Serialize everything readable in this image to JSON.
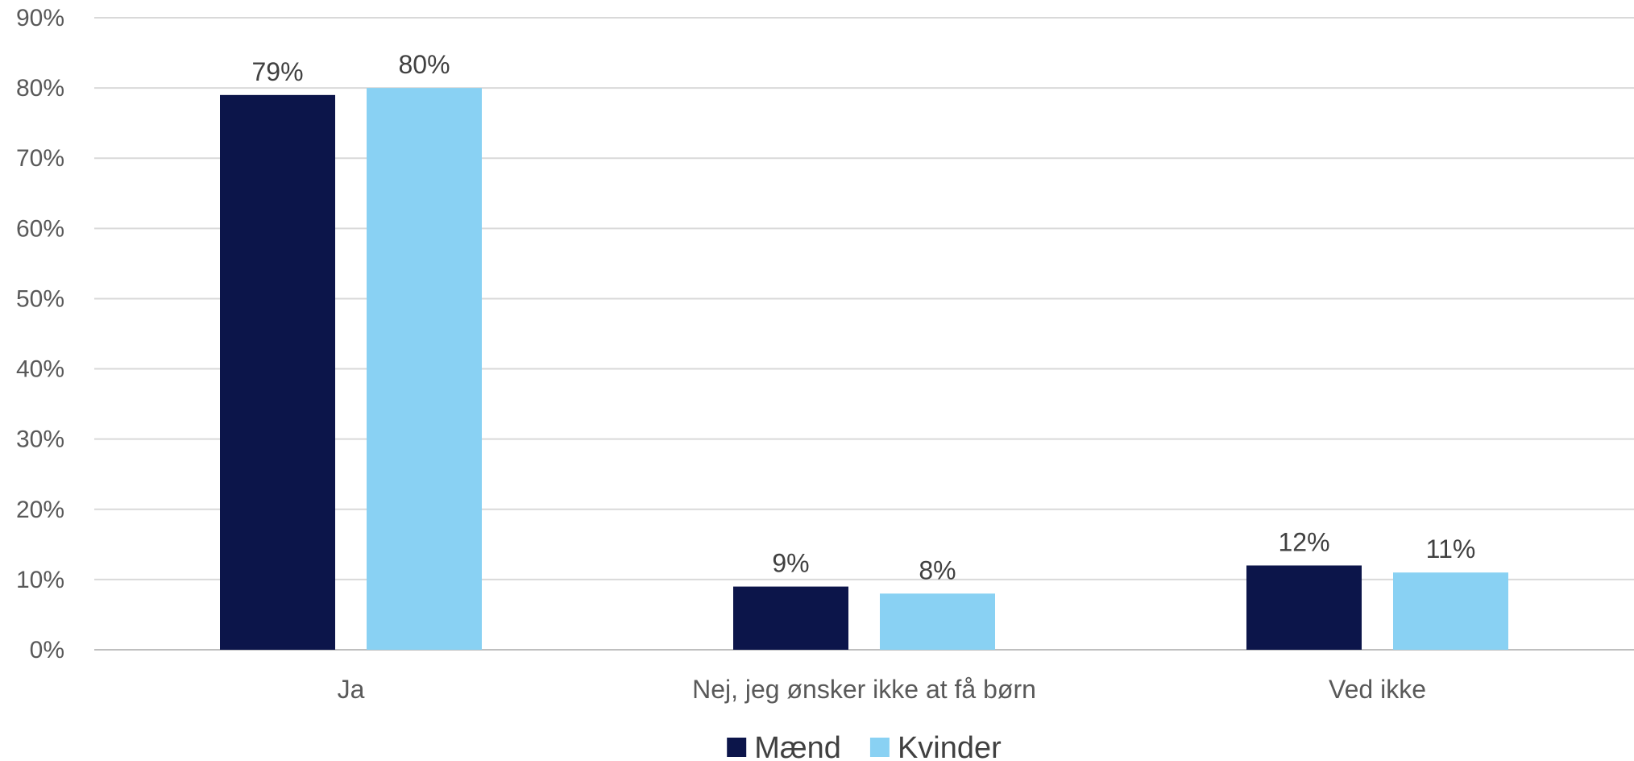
{
  "chart_data": {
    "type": "bar",
    "categories": [
      "Ja",
      "Nej, jeg ønsker ikke at få børn",
      "Ved ikke"
    ],
    "series": [
      {
        "name": "Mænd",
        "color": "#0c154a",
        "values": [
          79,
          9,
          12
        ],
        "labels": [
          "79%",
          "9%",
          "12%"
        ]
      },
      {
        "name": "Kvinder",
        "color": "#89d1f3",
        "values": [
          80,
          8,
          11
        ],
        "labels": [
          "80%",
          "8%",
          "11%"
        ]
      }
    ],
    "yticks": [
      0,
      10,
      20,
      30,
      40,
      50,
      60,
      70,
      80,
      90
    ],
    "ytick_labels": [
      "0%",
      "10%",
      "20%",
      "30%",
      "40%",
      "50%",
      "60%",
      "70%",
      "80%",
      "90%"
    ],
    "ylim": [
      0,
      90
    ],
    "grid": true,
    "legend_position": "bottom"
  }
}
